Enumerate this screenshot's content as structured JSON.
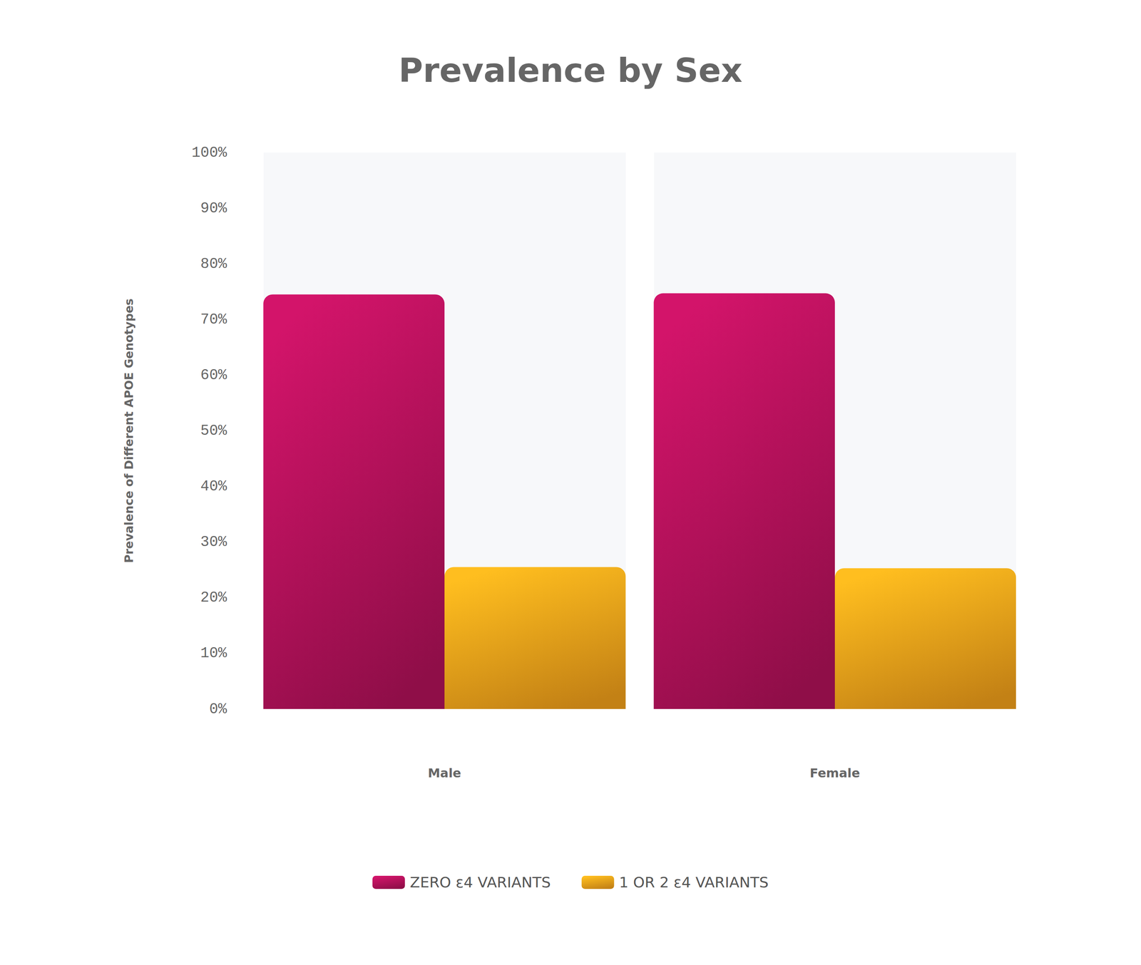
{
  "chart_data": {
    "type": "bar",
    "title": "Prevalence by Sex",
    "ylabel": "Prevalence of Different APOE Genotypes",
    "categories": [
      "Male",
      "Female"
    ],
    "series": [
      {
        "name": "ZERO ε4 VARIANTS",
        "color": "#b3115a",
        "values": [
          74.5,
          74.7
        ]
      },
      {
        "name": "1 OR 2 ε4 VARIANTS",
        "color": "#f4a11a",
        "values": [
          25.5,
          25.3
        ]
      }
    ],
    "ylim": [
      0,
      100
    ],
    "yticks": [
      {
        "value": 0,
        "label": "0%"
      },
      {
        "value": 10,
        "label": "10%"
      },
      {
        "value": 20,
        "label": "20%"
      },
      {
        "value": 30,
        "label": "30%"
      },
      {
        "value": 40,
        "label": "40%"
      },
      {
        "value": 50,
        "label": "50%"
      },
      {
        "value": 60,
        "label": "60%"
      },
      {
        "value": 70,
        "label": "70%"
      },
      {
        "value": 80,
        "label": "80%"
      },
      {
        "value": 90,
        "label": "90%"
      },
      {
        "value": 100,
        "label": "100%"
      }
    ],
    "grid": false,
    "legend": "bottom"
  }
}
